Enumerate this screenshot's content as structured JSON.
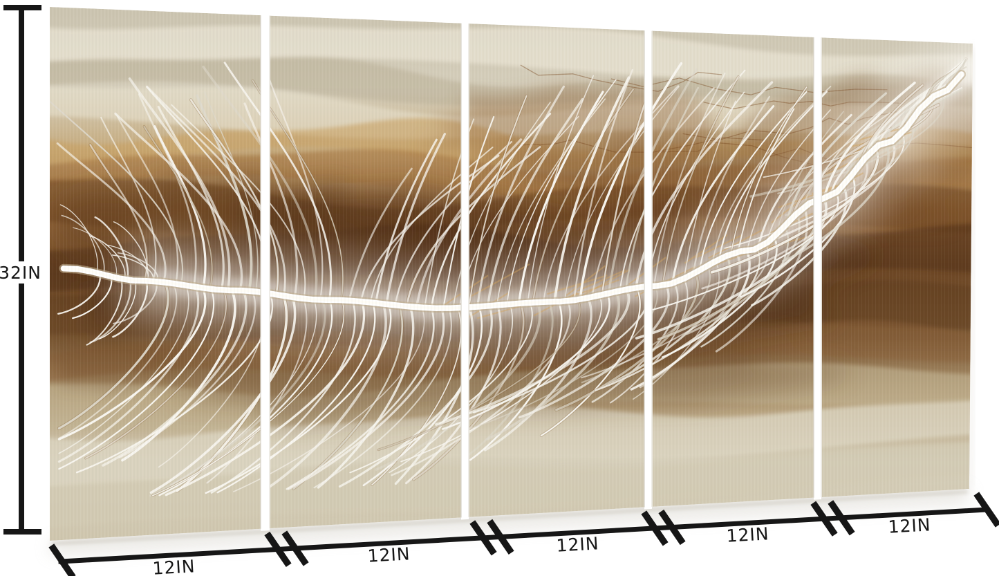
{
  "image": {
    "kind": "product dimension photo",
    "background": "#ffffff",
    "subject": "5-panel white feather metal wall art"
  },
  "artwork": {
    "panel_count": 5,
    "palette": {
      "pale_beige": "#d6cfbc",
      "gold_tan": "#c6ab7e",
      "deep_gold": "#96693c",
      "dark_brown": "#6e4826",
      "darkest_brown": "#4a2c13",
      "cream": "#d9d3c2",
      "feather_white": "#f8f6f0",
      "feather_shadow": "#ded9cc",
      "gold_glint": "#d2a55e"
    }
  },
  "dimensions": {
    "line_color": "#161616",
    "height_label": "32IN",
    "width_labels": [
      "12IN",
      "12IN",
      "12IN",
      "12IN",
      "12IN"
    ]
  }
}
